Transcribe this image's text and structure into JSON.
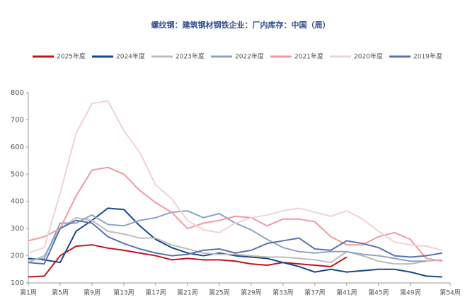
{
  "chart_data": {
    "type": "line",
    "title": "螺纹钢：建筑钢材钢铁企业：厂内库存：中国（周）",
    "x": [
      1,
      3,
      5,
      7,
      9,
      11,
      13,
      15,
      17,
      19,
      21,
      23,
      25,
      27,
      29,
      31,
      33,
      35,
      37,
      39,
      41,
      43,
      45,
      47,
      49,
      51,
      53
    ],
    "xlim": [
      1,
      54
    ],
    "xticks": [
      {
        "value": 1,
        "label": "第1周"
      },
      {
        "value": 5,
        "label": "第5周"
      },
      {
        "value": 9,
        "label": "第9周"
      },
      {
        "value": 13,
        "label": "第13周"
      },
      {
        "value": 17,
        "label": "第17周"
      },
      {
        "value": 21,
        "label": "第21周"
      },
      {
        "value": 25,
        "label": "第25周"
      },
      {
        "value": 29,
        "label": "第29周"
      },
      {
        "value": 33,
        "label": "第33周"
      },
      {
        "value": 37,
        "label": "第37周"
      },
      {
        "value": 41,
        "label": "第41周"
      },
      {
        "value": 45,
        "label": "第45周"
      },
      {
        "value": 49,
        "label": "第49周"
      },
      {
        "value": 54,
        "label": "第54周"
      }
    ],
    "ylim": [
      100,
      800
    ],
    "yticks": [
      100,
      200,
      300,
      400,
      500,
      600,
      700,
      800
    ],
    "series": [
      {
        "name": "2025年度",
        "color": "#c0141e",
        "values": [
          122,
          125,
          200,
          235,
          240,
          228,
          220,
          210,
          200,
          185,
          190,
          185,
          185,
          180,
          170,
          165,
          175,
          170,
          165,
          160,
          195,
          null,
          null,
          null,
          null,
          null,
          null
        ]
      },
      {
        "name": "2024年度",
        "color": "#17478c",
        "values": [
          190,
          185,
          175,
          290,
          330,
          375,
          370,
          310,
          260,
          230,
          210,
          200,
          210,
          200,
          195,
          190,
          175,
          160,
          140,
          150,
          140,
          145,
          150,
          150,
          140,
          125,
          122
        ]
      },
      {
        "name": "2023年度",
        "color": "#bdbdbd",
        "values": [
          175,
          200,
          300,
          340,
          330,
          290,
          280,
          265,
          265,
          240,
          225,
          210,
          205,
          205,
          200,
          195,
          195,
          190,
          185,
          175,
          215,
          200,
          180,
          170,
          170,
          180,
          185
        ]
      },
      {
        "name": "2022年度",
        "color": "#8ea4c4",
        "values": [
          185,
          190,
          320,
          320,
          350,
          315,
          310,
          330,
          340,
          360,
          365,
          340,
          355,
          320,
          295,
          260,
          230,
          215,
          210,
          215,
          215,
          205,
          200,
          190,
          180,
          180,
          null
        ]
      },
      {
        "name": "2021年度",
        "color": "#ef9aa3",
        "values": [
          255,
          270,
          300,
          420,
          515,
          525,
          500,
          440,
          395,
          360,
          300,
          320,
          330,
          345,
          340,
          310,
          335,
          335,
          325,
          270,
          240,
          240,
          270,
          285,
          260,
          190,
          180
        ]
      },
      {
        "name": "2020年度",
        "color": "#f0d2d8",
        "values": [
          210,
          230,
          430,
          650,
          760,
          770,
          660,
          580,
          460,
          410,
          330,
          295,
          285,
          320,
          340,
          350,
          365,
          375,
          360,
          345,
          365,
          335,
          290,
          250,
          240,
          235,
          220
        ]
      },
      {
        "name": "2019年度",
        "color": "#5a72aa",
        "values": [
          175,
          170,
          300,
          330,
          320,
          270,
          245,
          225,
          210,
          200,
          205,
          220,
          225,
          210,
          220,
          245,
          255,
          265,
          225,
          220,
          255,
          245,
          230,
          200,
          195,
          200,
          210
        ]
      }
    ]
  }
}
